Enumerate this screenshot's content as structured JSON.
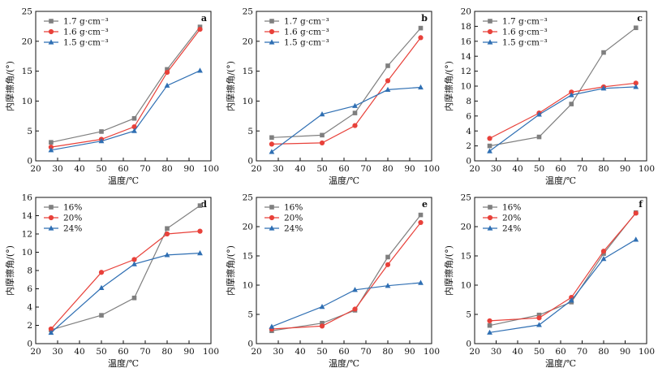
{
  "colors": {
    "gray": "#7f7f7f",
    "red": "#e8413a",
    "blue": "#2f6fb3",
    "axis": "#111111"
  },
  "chart_data": [
    {
      "panel": "a",
      "type": "line",
      "xlabel": "温度/℃",
      "ylabel": "内摩擦角/(°)",
      "xlim": [
        20,
        100
      ],
      "ylim": [
        0,
        25
      ],
      "xticks": [
        20,
        30,
        40,
        50,
        60,
        70,
        80,
        90,
        100
      ],
      "yticks": [
        0,
        5,
        10,
        15,
        20,
        25
      ],
      "grid": false,
      "legend_position": "top-left",
      "x": [
        27,
        50,
        65,
        80,
        95
      ],
      "series": [
        {
          "name": "1.7 g·cm⁻³",
          "color": "gray",
          "marker": "square",
          "values": [
            3.1,
            4.9,
            7.1,
            15.3,
            22.4
          ]
        },
        {
          "name": "1.6 g·cm⁻³",
          "color": "red",
          "marker": "circle",
          "values": [
            2.3,
            3.6,
            5.7,
            14.8,
            22.0
          ]
        },
        {
          "name": "1.5 g·cm⁻³",
          "color": "blue",
          "marker": "triangle",
          "values": [
            1.8,
            3.3,
            5.0,
            12.6,
            15.1
          ]
        }
      ]
    },
    {
      "panel": "b",
      "type": "line",
      "xlabel": "温度/℃",
      "ylabel": "内摩擦角/(°)",
      "xlim": [
        20,
        100
      ],
      "ylim": [
        0,
        25
      ],
      "xticks": [
        20,
        30,
        40,
        50,
        60,
        70,
        80,
        90,
        100
      ],
      "yticks": [
        0,
        5,
        10,
        15,
        20,
        25
      ],
      "grid": false,
      "legend_position": "top-left",
      "x": [
        27,
        50,
        65,
        80,
        95
      ],
      "series": [
        {
          "name": "1.7 g·cm⁻³",
          "color": "gray",
          "marker": "square",
          "values": [
            3.9,
            4.3,
            8.0,
            15.9,
            22.2
          ]
        },
        {
          "name": "1.6 g·cm⁻³",
          "color": "red",
          "marker": "circle",
          "values": [
            2.8,
            3.0,
            5.9,
            13.4,
            20.6
          ]
        },
        {
          "name": "1.5 g·cm⁻³",
          "color": "blue",
          "marker": "triangle",
          "values": [
            1.5,
            7.8,
            9.2,
            11.9,
            12.3
          ]
        }
      ]
    },
    {
      "panel": "c",
      "type": "line",
      "xlabel": "温度/℃",
      "ylabel": "内摩擦角/(°)",
      "xlim": [
        20,
        100
      ],
      "ylim": [
        0,
        20
      ],
      "xticks": [
        20,
        30,
        40,
        50,
        60,
        70,
        80,
        90,
        100
      ],
      "yticks": [
        0,
        2,
        4,
        6,
        8,
        10,
        12,
        14,
        16,
        18,
        20
      ],
      "grid": false,
      "legend_position": "top-left",
      "x": [
        27,
        50,
        65,
        80,
        95
      ],
      "series": [
        {
          "name": "1.7 g·cm⁻³",
          "color": "gray",
          "marker": "square",
          "values": [
            2.0,
            3.2,
            7.6,
            14.5,
            17.8
          ]
        },
        {
          "name": "1.6 g·cm⁻³",
          "color": "red",
          "marker": "circle",
          "values": [
            3.0,
            6.4,
            9.2,
            9.9,
            10.4
          ]
        },
        {
          "name": "1.5 g·cm⁻³",
          "color": "blue",
          "marker": "triangle",
          "values": [
            1.3,
            6.2,
            8.8,
            9.7,
            9.9
          ]
        }
      ]
    },
    {
      "panel": "d",
      "type": "line",
      "xlabel": "温度/℃",
      "ylabel": "内摩擦角/(°)",
      "xlim": [
        20,
        100
      ],
      "ylim": [
        0,
        16
      ],
      "xticks": [
        20,
        30,
        40,
        50,
        60,
        70,
        80,
        90,
        100
      ],
      "yticks": [
        0,
        2,
        4,
        6,
        8,
        10,
        12,
        14,
        16
      ],
      "grid": false,
      "legend_position": "top-left",
      "x": [
        27,
        50,
        65,
        80,
        95
      ],
      "series": [
        {
          "name": "16%",
          "color": "gray",
          "marker": "square",
          "values": [
            1.5,
            3.1,
            5.0,
            12.6,
            15.1
          ]
        },
        {
          "name": "20%",
          "color": "red",
          "marker": "circle",
          "values": [
            1.6,
            7.8,
            9.2,
            12.0,
            12.3
          ]
        },
        {
          "name": "24%",
          "color": "blue",
          "marker": "triangle",
          "values": [
            1.2,
            6.1,
            8.7,
            9.7,
            9.9
          ]
        }
      ]
    },
    {
      "panel": "e",
      "type": "line",
      "xlabel": "温度/℃",
      "ylabel": "内摩擦角/(°)",
      "xlim": [
        20,
        100
      ],
      "ylim": [
        0,
        25
      ],
      "xticks": [
        20,
        30,
        40,
        50,
        60,
        70,
        80,
        90,
        100
      ],
      "yticks": [
        0,
        5,
        10,
        15,
        20,
        25
      ],
      "grid": false,
      "legend_position": "top-left",
      "x": [
        27,
        50,
        65,
        80,
        95
      ],
      "series": [
        {
          "name": "16%",
          "color": "gray",
          "marker": "square",
          "values": [
            2.2,
            3.5,
            5.7,
            14.8,
            22.0
          ]
        },
        {
          "name": "20%",
          "color": "red",
          "marker": "circle",
          "values": [
            2.5,
            3.0,
            5.9,
            13.5,
            20.7
          ]
        },
        {
          "name": "24%",
          "color": "blue",
          "marker": "triangle",
          "values": [
            2.9,
            6.3,
            9.2,
            9.9,
            10.4
          ]
        }
      ]
    },
    {
      "panel": "f",
      "type": "line",
      "xlabel": "温度/℃",
      "ylabel": "内摩擦角/(°)",
      "xlim": [
        20,
        100
      ],
      "ylim": [
        0,
        25
      ],
      "xticks": [
        20,
        30,
        40,
        50,
        60,
        70,
        80,
        90,
        100
      ],
      "yticks": [
        0,
        5,
        10,
        15,
        20,
        25
      ],
      "grid": false,
      "legend_position": "top-left",
      "x": [
        27,
        50,
        65,
        80,
        95
      ],
      "series": [
        {
          "name": "16%",
          "color": "gray",
          "marker": "square",
          "values": [
            3.1,
            4.9,
            7.1,
            15.4,
            22.4
          ]
        },
        {
          "name": "20%",
          "color": "red",
          "marker": "circle",
          "values": [
            3.9,
            4.4,
            7.9,
            15.8,
            22.3
          ]
        },
        {
          "name": "24%",
          "color": "blue",
          "marker": "triangle",
          "values": [
            1.9,
            3.2,
            7.4,
            14.5,
            17.8
          ]
        }
      ]
    }
  ]
}
